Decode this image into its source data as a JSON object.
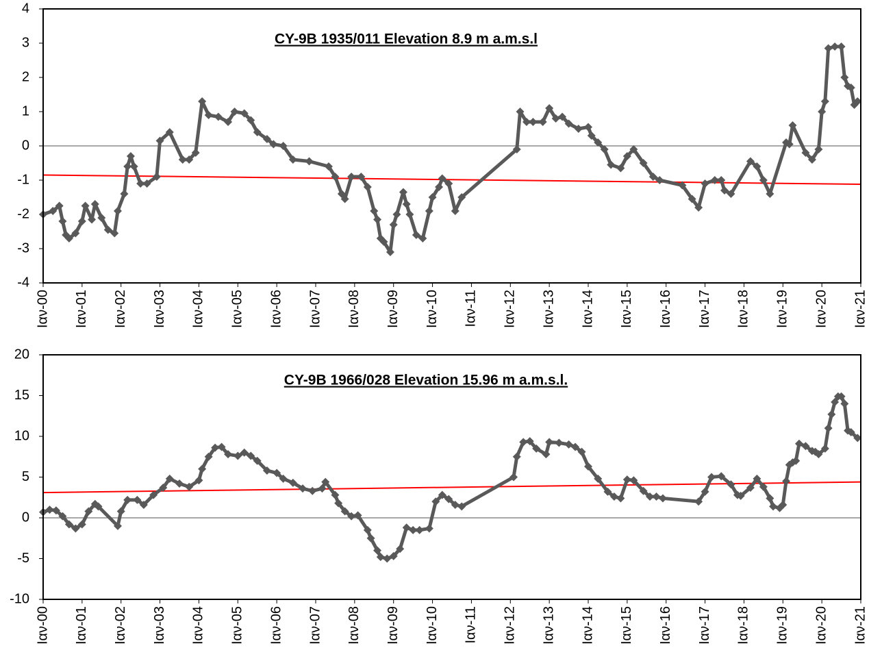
{
  "chart_data": [
    {
      "type": "line",
      "title": "CY-9B 1935/011  Elevation 8.9 m a.m.s.l",
      "x": [
        "2000-01",
        "2000-04",
        "2000-06",
        "2000-07",
        "2000-08",
        "2000-09",
        "2000-11",
        "2001-01",
        "2001-02",
        "2001-04",
        "2001-05",
        "2001-07",
        "2001-09",
        "2001-11",
        "2001-12",
        "2002-02",
        "2002-03",
        "2002-04",
        "2002-05",
        "2002-07",
        "2002-09",
        "2002-12",
        "2003-01",
        "2003-04",
        "2003-08",
        "2003-10",
        "2003-12",
        "2004-02",
        "2004-04",
        "2004-07",
        "2004-10",
        "2004-12",
        "2005-03",
        "2005-05",
        "2005-07",
        "2005-10",
        "2005-12",
        "2006-03",
        "2006-06",
        "2006-11",
        "2007-05",
        "2007-07",
        "2007-09",
        "2007-10",
        "2007-12",
        "2008-03",
        "2008-05",
        "2008-07",
        "2008-08",
        "2008-09",
        "2008-10",
        "2008-12",
        "2009-01",
        "2009-02",
        "2009-04",
        "2009-05",
        "2009-06",
        "2009-08",
        "2009-10",
        "2009-12",
        "2010-01",
        "2010-03",
        "2010-04",
        "2010-06",
        "2010-08",
        "2010-10",
        "2012-03",
        "2012-04",
        "2012-06",
        "2012-08",
        "2012-11",
        "2013-01",
        "2013-03",
        "2013-05",
        "2013-07",
        "2013-10",
        "2014-01",
        "2014-02",
        "2014-04",
        "2014-06",
        "2014-08",
        "2014-11",
        "2015-01",
        "2015-03",
        "2015-06",
        "2015-09",
        "2015-11",
        "2016-06",
        "2016-09",
        "2016-11",
        "2017-01",
        "2017-04",
        "2017-06",
        "2017-07",
        "2017-09",
        "2018-03",
        "2018-05",
        "2018-07",
        "2018-09",
        "2019-02",
        "2019-03",
        "2019-04",
        "2019-08",
        "2019-10",
        "2019-12",
        "2020-01",
        "2020-02",
        "2020-03",
        "2020-05",
        "2020-07",
        "2020-08",
        "2020-09",
        "2020-10",
        "2020-11",
        "2020-12"
      ],
      "values": [
        -2.0,
        -1.9,
        -1.75,
        -2.2,
        -2.6,
        -2.7,
        -2.55,
        -2.2,
        -1.75,
        -2.15,
        -1.7,
        -2.1,
        -2.45,
        -2.55,
        -1.9,
        -1.4,
        -0.6,
        -0.3,
        -0.6,
        -1.1,
        -1.1,
        -0.9,
        0.15,
        0.4,
        -0.4,
        -0.4,
        -0.2,
        1.3,
        0.9,
        0.85,
        0.7,
        1.0,
        0.95,
        0.75,
        0.4,
        0.2,
        0.05,
        0.0,
        -0.4,
        -0.45,
        -0.6,
        -0.9,
        -1.4,
        -1.55,
        -0.9,
        -0.9,
        -1.2,
        -1.9,
        -2.15,
        -2.7,
        -2.8,
        -3.1,
        -2.3,
        -2.0,
        -1.35,
        -1.7,
        -2.0,
        -2.6,
        -2.7,
        -1.9,
        -1.5,
        -1.2,
        -0.95,
        -1.1,
        -1.9,
        -1.5,
        -0.1,
        1.0,
        0.7,
        0.7,
        0.7,
        1.1,
        0.8,
        0.85,
        0.65,
        0.5,
        0.55,
        0.3,
        0.1,
        -0.1,
        -0.55,
        -0.65,
        -0.3,
        -0.1,
        -0.5,
        -0.9,
        -1.0,
        -1.15,
        -1.55,
        -1.8,
        -1.1,
        -1.0,
        -1.0,
        -1.3,
        -1.4,
        -0.45,
        -0.6,
        -1.0,
        -1.4,
        0.1,
        0.05,
        0.6,
        -0.2,
        -0.4,
        -0.1,
        1.0,
        1.3,
        2.85,
        2.9,
        2.9,
        2.0,
        1.75,
        1.7,
        1.2,
        1.3
      ],
      "color": "#595959",
      "trend": {
        "x": [
          "2000-01",
          "2021-01"
        ],
        "values": [
          -0.85,
          -1.12
        ],
        "color": "#ff0000"
      },
      "xlim": [
        "2000-01",
        "2021-01"
      ],
      "xticks": [
        {
          "value": "2000-01",
          "label": "Ιαν-00"
        },
        {
          "value": "2001-01",
          "label": "Ιαν-01"
        },
        {
          "value": "2002-01",
          "label": "Ιαν-02"
        },
        {
          "value": "2003-01",
          "label": "Ιαν-03"
        },
        {
          "value": "2004-01",
          "label": "Ιαν-04"
        },
        {
          "value": "2005-01",
          "label": "Ιαν-05"
        },
        {
          "value": "2006-01",
          "label": "Ιαν-06"
        },
        {
          "value": "2007-01",
          "label": "Ιαν-07"
        },
        {
          "value": "2008-01",
          "label": "Ιαν-08"
        },
        {
          "value": "2009-01",
          "label": "Ιαν-09"
        },
        {
          "value": "2010-01",
          "label": "Ιαν-10"
        },
        {
          "value": "2011-01",
          "label": "Ιαν-11"
        },
        {
          "value": "2012-01",
          "label": "Ιαν-12"
        },
        {
          "value": "2013-01",
          "label": "Ιαν-13"
        },
        {
          "value": "2014-01",
          "label": "Ιαν-14"
        },
        {
          "value": "2015-01",
          "label": "Ιαν-15"
        },
        {
          "value": "2016-01",
          "label": "Ιαν-16"
        },
        {
          "value": "2017-01",
          "label": "Ιαν-17"
        },
        {
          "value": "2018-01",
          "label": "Ιαν-18"
        },
        {
          "value": "2019-01",
          "label": "Ιαν-19"
        },
        {
          "value": "2020-01",
          "label": "Ιαν-20"
        },
        {
          "value": "2021-01",
          "label": "Ιαν-21"
        }
      ],
      "ylim": [
        -4,
        4
      ],
      "yticks": [
        -4,
        -3,
        -2,
        -1,
        0,
        1,
        2,
        3,
        4
      ]
    },
    {
      "type": "line",
      "title": "CY-9B 1966/028  Elevation 15.96 m a.m.s.l.",
      "x": [
        "2000-01",
        "2000-03",
        "2000-05",
        "2000-07",
        "2000-09",
        "2000-11",
        "2001-01",
        "2001-03",
        "2001-05",
        "2001-06",
        "2001-12",
        "2002-01",
        "2002-03",
        "2002-06",
        "2002-08",
        "2002-11",
        "2003-02",
        "2003-04",
        "2003-07",
        "2003-10",
        "2004-01",
        "2004-02",
        "2004-04",
        "2004-06",
        "2004-08",
        "2004-10",
        "2005-01",
        "2005-03",
        "2005-05",
        "2005-07",
        "2005-10",
        "2006-01",
        "2006-03",
        "2006-06",
        "2006-09",
        "2006-12",
        "2007-03",
        "2007-04",
        "2007-07",
        "2007-08",
        "2007-10",
        "2007-12",
        "2008-02",
        "2008-05",
        "2008-06",
        "2008-08",
        "2008-09",
        "2008-11",
        "2009-01",
        "2009-03",
        "2009-05",
        "2009-07",
        "2009-09",
        "2009-12",
        "2010-02",
        "2010-04",
        "2010-06",
        "2010-08",
        "2010-10",
        "2012-02",
        "2012-03",
        "2012-05",
        "2012-07",
        "2012-09",
        "2012-12",
        "2013-01",
        "2013-04",
        "2013-07",
        "2013-09",
        "2013-11",
        "2014-01",
        "2014-04",
        "2014-07",
        "2014-09",
        "2014-11",
        "2015-01",
        "2015-03",
        "2015-06",
        "2015-08",
        "2015-10",
        "2015-12",
        "2016-11",
        "2017-01",
        "2017-03",
        "2017-06",
        "2017-09",
        "2017-11",
        "2017-12",
        "2018-03",
        "2018-05",
        "2018-07",
        "2018-09",
        "2018-10",
        "2018-12",
        "2019-01",
        "2019-02",
        "2019-03",
        "2019-04",
        "2019-05",
        "2019-06",
        "2019-08",
        "2019-10",
        "2019-11",
        "2019-12",
        "2020-02",
        "2020-03",
        "2020-04",
        "2020-05",
        "2020-06",
        "2020-07",
        "2020-08",
        "2020-09",
        "2020-10",
        "2020-12"
      ],
      "values": [
        0.7,
        1.0,
        0.9,
        0.2,
        -0.8,
        -1.3,
        -0.8,
        0.8,
        1.7,
        1.4,
        -1.0,
        0.8,
        2.2,
        2.2,
        1.6,
        2.8,
        3.7,
        4.8,
        4.2,
        3.8,
        4.6,
        6.0,
        7.5,
        8.6,
        8.7,
        7.8,
        7.6,
        8.0,
        7.6,
        7.0,
        5.8,
        5.5,
        4.8,
        4.3,
        3.6,
        3.3,
        3.6,
        4.4,
        2.8,
        1.8,
        0.8,
        0.2,
        0.3,
        -1.5,
        -2.5,
        -4.0,
        -4.8,
        -5.0,
        -4.7,
        -3.8,
        -1.2,
        -1.5,
        -1.5,
        -1.3,
        2.0,
        2.8,
        2.3,
        1.6,
        1.4,
        5.0,
        7.5,
        9.3,
        9.4,
        8.5,
        7.8,
        9.3,
        9.2,
        9.0,
        8.7,
        8.1,
        6.3,
        4.8,
        3.2,
        2.6,
        2.4,
        4.7,
        4.6,
        3.3,
        2.6,
        2.6,
        2.4,
        2.0,
        3.2,
        5.0,
        5.1,
        4.1,
        2.8,
        2.7,
        3.7,
        4.8,
        3.8,
        2.4,
        1.4,
        1.2,
        1.6,
        4.5,
        6.5,
        6.8,
        7.0,
        9.1,
        8.8,
        8.2,
        8.1,
        7.8,
        8.5,
        11.0,
        12.7,
        14.2,
        14.9,
        14.9,
        14.0,
        10.7,
        10.5,
        9.8
      ],
      "color": "#595959",
      "trend": {
        "x": [
          "2000-01",
          "2021-01"
        ],
        "values": [
          3.1,
          4.4
        ],
        "color": "#ff0000"
      },
      "xlim": [
        "2000-01",
        "2021-01"
      ],
      "xticks": [
        {
          "value": "2000-01",
          "label": "Ιαν-00"
        },
        {
          "value": "2001-01",
          "label": "Ιαν-01"
        },
        {
          "value": "2002-01",
          "label": "Ιαν-02"
        },
        {
          "value": "2003-01",
          "label": "Ιαν-03"
        },
        {
          "value": "2004-01",
          "label": "Ιαν-04"
        },
        {
          "value": "2005-01",
          "label": "Ιαν-05"
        },
        {
          "value": "2006-01",
          "label": "Ιαν-06"
        },
        {
          "value": "2007-01",
          "label": "Ιαν-07"
        },
        {
          "value": "2008-01",
          "label": "Ιαν-08"
        },
        {
          "value": "2009-01",
          "label": "Ιαν-09"
        },
        {
          "value": "2010-01",
          "label": "Ιαν-10"
        },
        {
          "value": "2011-01",
          "label": "Ιαν-11"
        },
        {
          "value": "2012-01",
          "label": "Ιαν-12"
        },
        {
          "value": "2013-01",
          "label": "Ιαν-13"
        },
        {
          "value": "2014-01",
          "label": "Ιαν-14"
        },
        {
          "value": "2015-01",
          "label": "Ιαν-15"
        },
        {
          "value": "2016-01",
          "label": "Ιαν-16"
        },
        {
          "value": "2017-01",
          "label": "Ιαν-17"
        },
        {
          "value": "2018-01",
          "label": "Ιαν-18"
        },
        {
          "value": "2019-01",
          "label": "Ιαν-19"
        },
        {
          "value": "2020-01",
          "label": "Ιαν-20"
        },
        {
          "value": "2021-01",
          "label": "Ιαν-21"
        }
      ],
      "ylim": [
        -10,
        20
      ],
      "yticks": [
        -10,
        -5,
        0,
        5,
        10,
        15,
        20
      ]
    }
  ]
}
